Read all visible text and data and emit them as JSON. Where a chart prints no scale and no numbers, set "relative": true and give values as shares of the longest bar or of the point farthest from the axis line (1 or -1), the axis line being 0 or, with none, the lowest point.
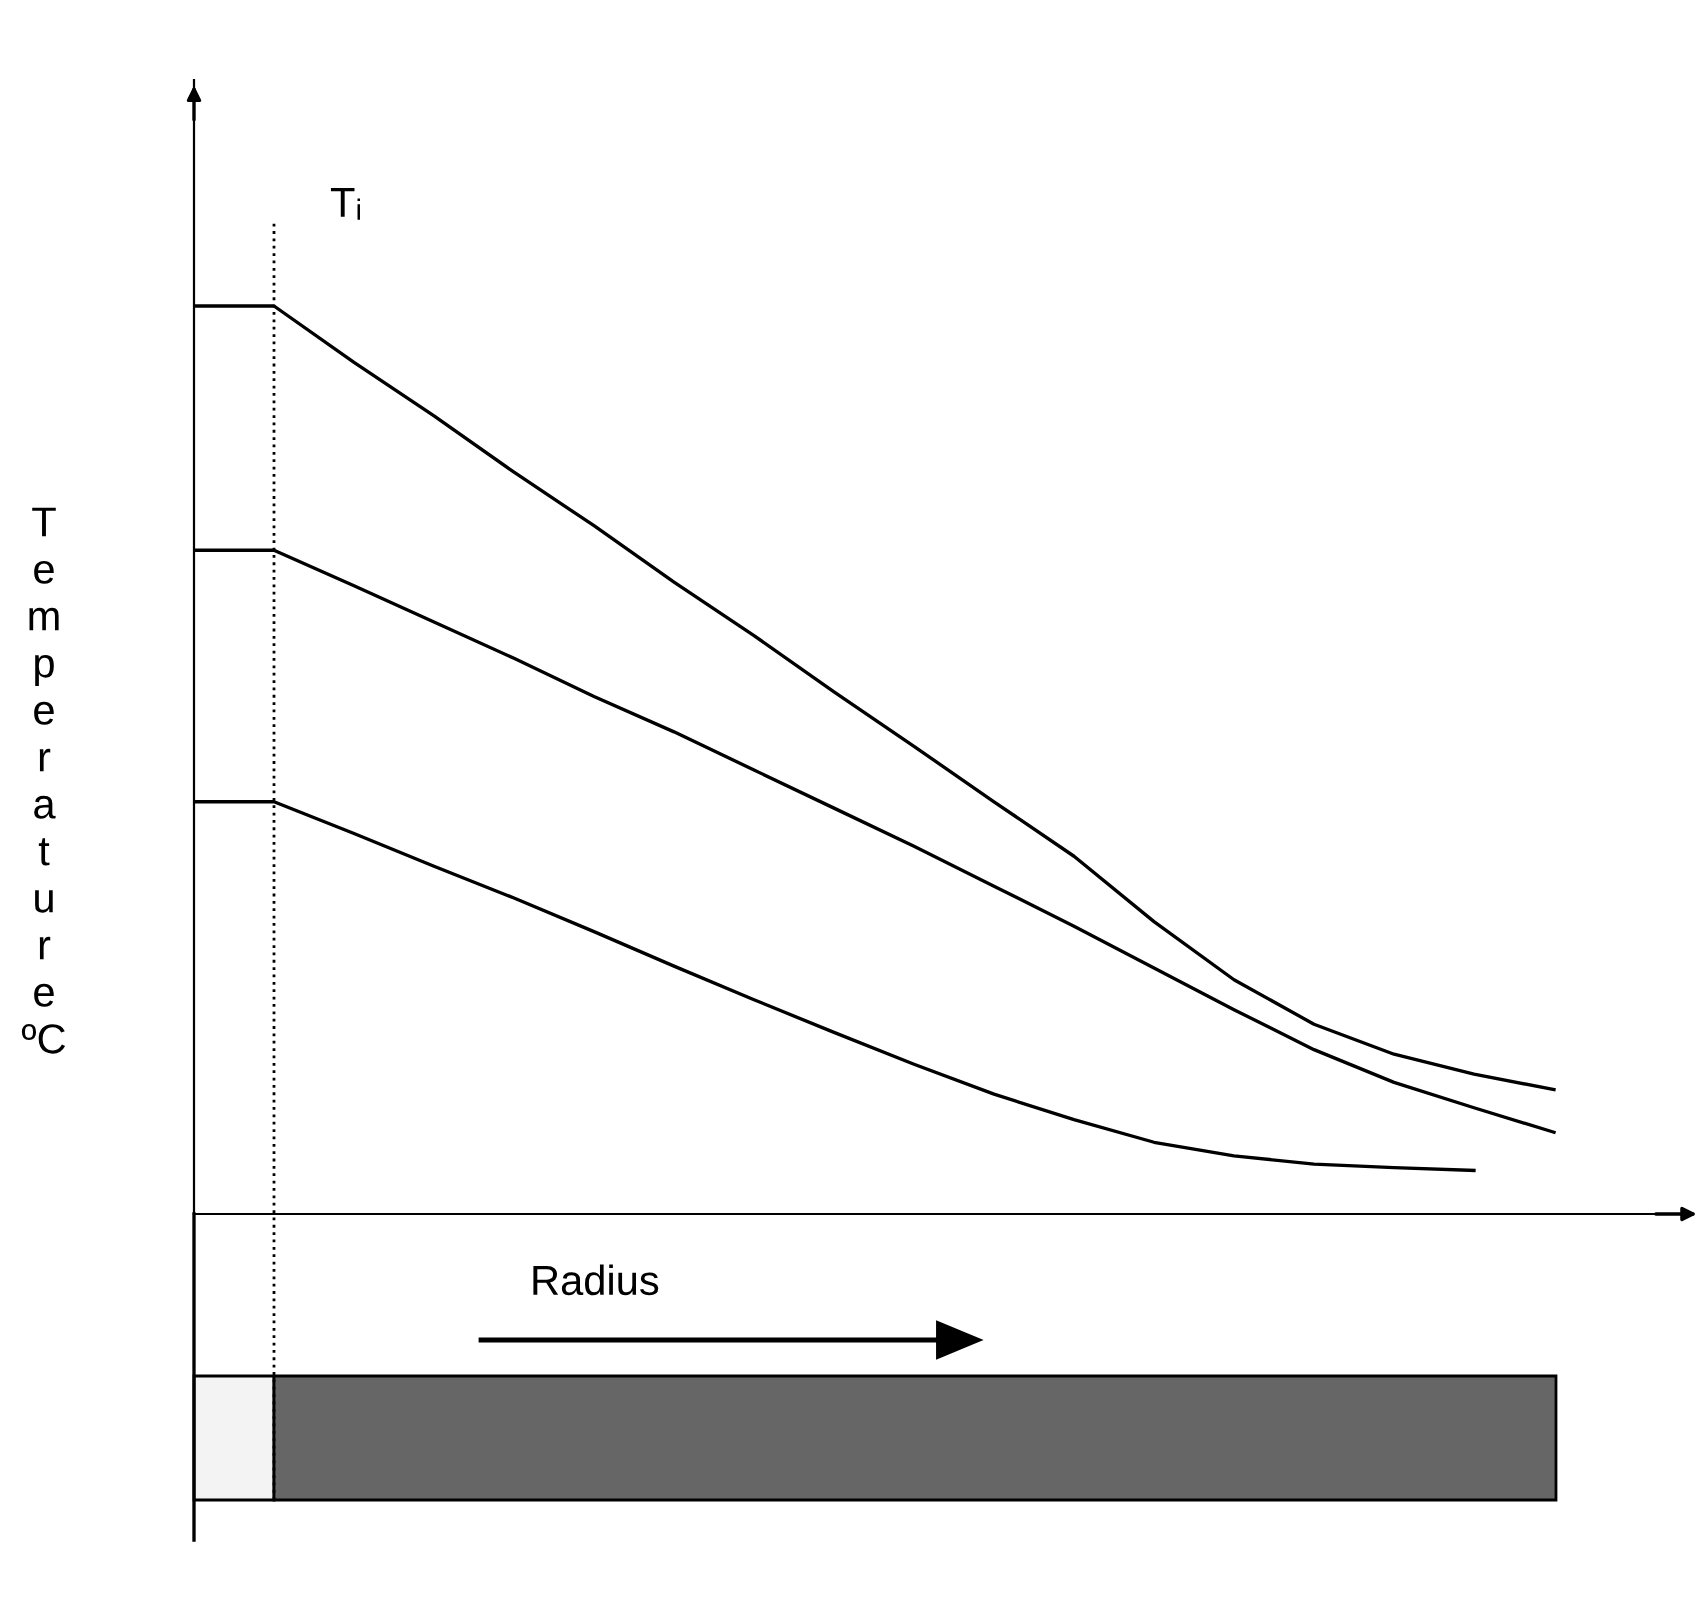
{
  "chart_data": {
    "type": "line",
    "relative": true,
    "ylabel": "Temperature ºC",
    "xlabel": "Radius",
    "categories": [
      null,
      null,
      null,
      null,
      null,
      null,
      null,
      null,
      null,
      null,
      null,
      null,
      null,
      null,
      null,
      null,
      null,
      null
    ],
    "series": [
      {
        "color": "#000000",
        "values": [
          1.0,
          1.0,
          0.938,
          0.879,
          0.817,
          0.758,
          0.696,
          0.637,
          0.575,
          0.515,
          0.454,
          0.394,
          0.322,
          0.258,
          0.209,
          0.176,
          0.154,
          0.137
        ]
      },
      {
        "color": "#000000",
        "values": [
          0.731,
          0.731,
          0.692,
          0.652,
          0.612,
          0.57,
          0.531,
          0.489,
          0.447,
          0.405,
          0.361,
          0.317,
          0.271,
          0.225,
          0.181,
          0.145,
          0.117,
          0.09
        ]
      },
      {
        "color": "#000000",
        "values": [
          0.454,
          0.454,
          0.419,
          0.383,
          0.348,
          0.311,
          0.273,
          0.236,
          0.2,
          0.165,
          0.132,
          0.104,
          0.079,
          0.064,
          0.055,
          0.051,
          0.048,
          null
        ]
      }
    ],
    "annotations": [
      "Tᵢ"
    ],
    "legend": false,
    "marker": "none",
    "line_style": "solid"
  }
}
